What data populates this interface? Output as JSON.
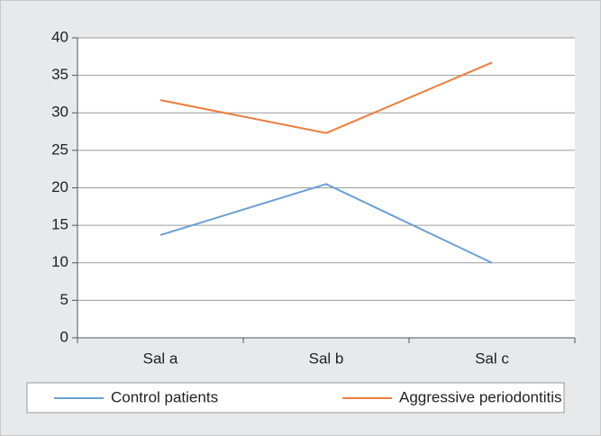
{
  "chart_data": {
    "type": "line",
    "categories": [
      "Sal a",
      "Sal b",
      "Sal c"
    ],
    "series": [
      {
        "name": "Control patients",
        "color": "#6a9fd4",
        "values": [
          13.7,
          20.5,
          10
        ]
      },
      {
        "name": "Aggressive periodontitis",
        "color": "#ee7d3c",
        "values": [
          31.7,
          27.3,
          36.7
        ]
      }
    ],
    "ylim": [
      0,
      40
    ],
    "yticks": [
      0,
      5,
      10,
      15,
      20,
      25,
      30,
      35,
      40
    ],
    "grid": true,
    "legend": "bottom"
  }
}
